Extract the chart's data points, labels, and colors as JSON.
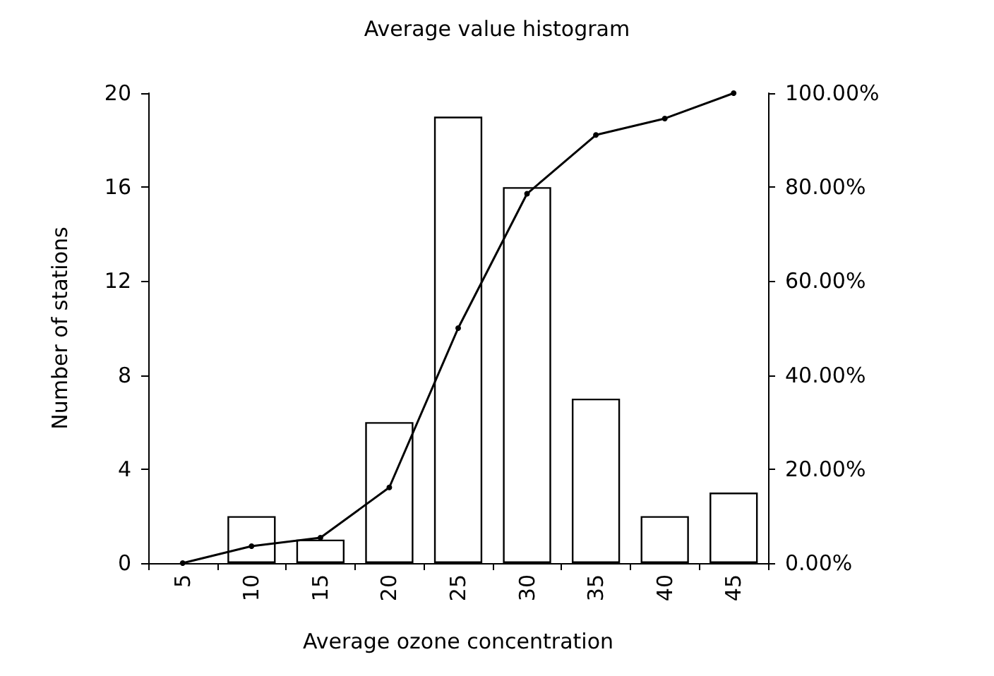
{
  "chart_data": {
    "type": "bar",
    "title": "Average value histogram",
    "xlabel": "Average ozone concentration",
    "ylabel": "Number of stations",
    "categories": [
      "5",
      "10",
      "15",
      "20",
      "25",
      "30",
      "35",
      "40",
      "45"
    ],
    "series": [
      {
        "color": "#ffffff",
        "values": [
          0,
          2,
          1,
          6,
          19,
          16,
          7,
          2,
          3
        ]
      },
      {
        "type": "line",
        "axis": "y2",
        "color": "#000000",
        "marker": "circle",
        "values": [
          0,
          3.6,
          5.4,
          16.1,
          50,
          78.6,
          91.1,
          94.6,
          100
        ]
      }
    ],
    "ylim": [
      0,
      20
    ],
    "yticks": [
      0,
      4,
      8,
      12,
      16,
      20
    ],
    "y2lim": [
      0,
      100
    ],
    "y2ticks": [
      {
        "value": 0,
        "label": "0.00%"
      },
      {
        "value": 20,
        "label": "20.00%"
      },
      {
        "value": 40,
        "label": "40.00%"
      },
      {
        "value": 60,
        "label": "60.00%"
      },
      {
        "value": 80,
        "label": "80.00%"
      },
      {
        "value": 100,
        "label": "100.00%"
      }
    ],
    "grid": false
  }
}
